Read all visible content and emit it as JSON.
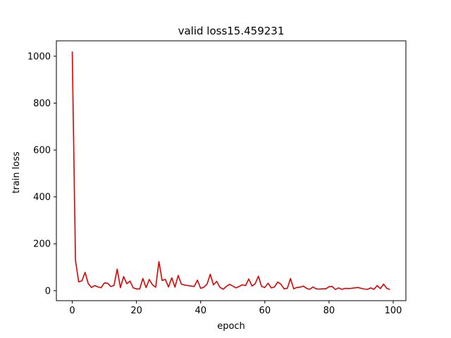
{
  "chart_data": {
    "type": "line",
    "title": "valid loss15.459231",
    "xlabel": "epoch",
    "ylabel": "train loss",
    "xlim": [
      -4.95,
      103.95
    ],
    "ylim": [
      -42.5,
      1065.5
    ],
    "xticks": [
      0,
      20,
      40,
      60,
      80,
      100
    ],
    "yticks": [
      0,
      200,
      400,
      600,
      800,
      1000
    ],
    "grid": false,
    "legend": "none",
    "series": [
      {
        "color": "#e00000",
        "x": [
          0,
          1,
          2,
          3,
          4,
          5,
          6,
          7,
          8,
          9,
          10,
          11,
          12,
          13,
          14,
          15,
          16,
          17,
          18,
          19,
          20,
          21,
          22,
          23,
          24,
          25,
          26,
          27,
          28,
          29,
          30,
          31,
          32,
          33,
          34,
          35,
          36,
          37,
          38,
          39,
          40,
          41,
          42,
          43,
          44,
          45,
          46,
          47,
          48,
          49,
          50,
          51,
          52,
          53,
          54,
          55,
          56,
          57,
          58,
          59,
          60,
          61,
          62,
          63,
          64,
          65,
          66,
          67,
          68,
          69,
          70,
          71,
          72,
          73,
          74,
          75,
          76,
          77,
          78,
          79,
          80,
          81,
          82,
          83,
          84,
          85,
          86,
          87,
          88,
          89,
          90,
          91,
          92,
          93,
          94,
          95,
          96,
          97,
          98,
          99
        ],
        "values": [
          1020,
          130,
          38,
          42,
          78,
          30,
          14,
          22,
          16,
          13,
          33,
          32,
          18,
          22,
          92,
          13,
          60,
          30,
          41,
          12,
          8,
          7,
          52,
          13,
          48,
          25,
          15,
          124,
          44,
          48,
          16,
          55,
          15,
          65,
          28,
          24,
          22,
          20,
          18,
          45,
          10,
          15,
          28,
          70,
          25,
          40,
          15,
          6,
          18,
          27,
          20,
          12,
          18,
          25,
          22,
          50,
          20,
          30,
          62,
          18,
          14,
          32,
          12,
          16,
          37,
          28,
          8,
          10,
          52,
          8,
          14,
          15,
          20,
          10,
          6,
          16,
          8,
          7,
          8,
          8,
          17,
          18,
          5,
          12,
          6,
          10,
          9,
          10,
          12,
          14,
          10,
          7,
          6,
          12,
          6,
          22,
          9,
          28,
          10,
          5
        ]
      }
    ]
  }
}
